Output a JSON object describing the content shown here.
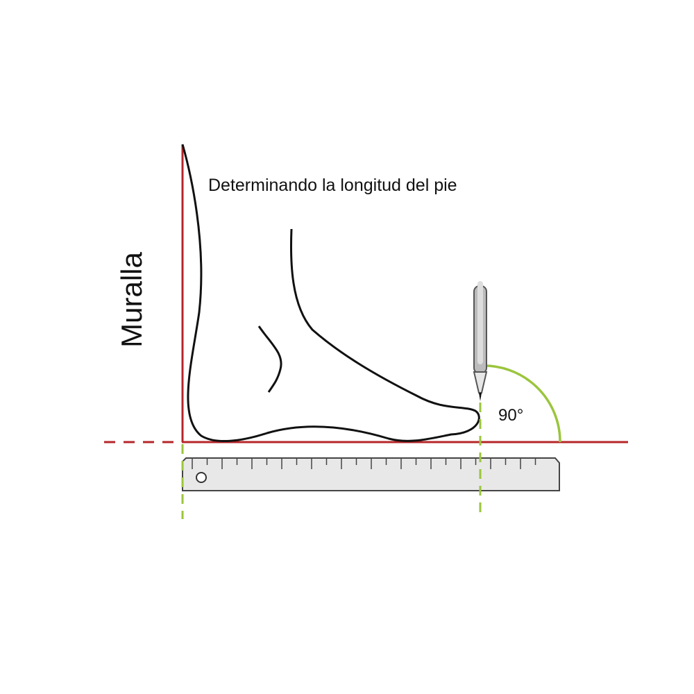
{
  "title": "Determinando la longitud del pie",
  "wall_label": "Muralla",
  "angle_label": "90°"
}
